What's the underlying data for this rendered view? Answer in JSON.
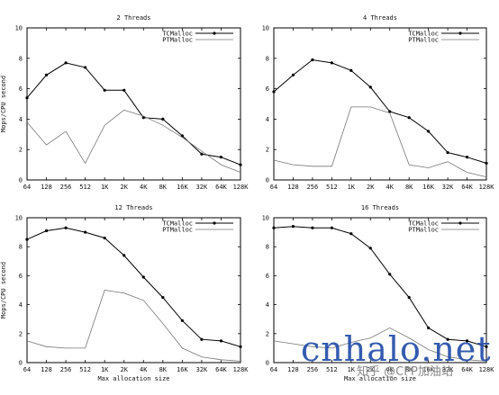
{
  "chart_data": [
    {
      "type": "line",
      "title": "2 Threads",
      "xlabel": "",
      "ylabel": "Mops/CPU second",
      "categories": [
        "64",
        "128",
        "256",
        "512",
        "1K",
        "2K",
        "4K",
        "8K",
        "16K",
        "32K",
        "64K",
        "128K"
      ],
      "ylim": [
        0,
        10
      ],
      "yticks": [
        0,
        2,
        4,
        6,
        8,
        10
      ],
      "legend": "top-right",
      "series": [
        {
          "name": "TCMalloc",
          "values": [
            5.4,
            6.9,
            7.7,
            7.4,
            5.9,
            5.9,
            4.1,
            4.0,
            2.9,
            1.7,
            1.5,
            1.0
          ]
        },
        {
          "name": "PTMalloc",
          "values": [
            3.8,
            2.3,
            3.2,
            1.1,
            3.6,
            4.6,
            4.2,
            3.6,
            2.8,
            1.9,
            1.0,
            0.5
          ]
        }
      ]
    },
    {
      "type": "line",
      "title": "4 Threads",
      "xlabel": "",
      "ylabel": "",
      "categories": [
        "64",
        "128",
        "256",
        "512",
        "1K",
        "2K",
        "4K",
        "8K",
        "16K",
        "32K",
        "64K",
        "128K"
      ],
      "ylim": [
        0,
        10
      ],
      "yticks": [
        0,
        2,
        4,
        6,
        8,
        10
      ],
      "legend": "top-right",
      "series": [
        {
          "name": "TCMalloc",
          "values": [
            5.8,
            6.9,
            7.9,
            7.7,
            7.2,
            6.1,
            4.5,
            4.1,
            3.2,
            1.8,
            1.5,
            1.1
          ]
        },
        {
          "name": "PTMalloc",
          "values": [
            1.3,
            1.0,
            0.9,
            0.9,
            4.8,
            4.8,
            4.4,
            1.0,
            0.8,
            1.2,
            0.5,
            0.2
          ]
        }
      ]
    },
    {
      "type": "line",
      "title": "12 Threads",
      "xlabel": "Max allocation size",
      "ylabel": "Mops/CPU second",
      "categories": [
        "64",
        "128",
        "256",
        "512",
        "1K",
        "2K",
        "4K",
        "8K",
        "16K",
        "32K",
        "64K",
        "128K"
      ],
      "ylim": [
        0,
        10
      ],
      "yticks": [
        0,
        2,
        4,
        6,
        8,
        10
      ],
      "legend": "top-right",
      "series": [
        {
          "name": "TCMalloc",
          "values": [
            8.5,
            9.1,
            9.3,
            9.0,
            8.6,
            7.4,
            5.9,
            4.5,
            2.9,
            1.6,
            1.5,
            1.1
          ]
        },
        {
          "name": "PTMalloc",
          "values": [
            1.5,
            1.1,
            1.0,
            1.0,
            5.0,
            4.8,
            4.3,
            2.7,
            1.0,
            0.4,
            0.2,
            0.1
          ]
        }
      ]
    },
    {
      "type": "line",
      "title": "16 Threads",
      "xlabel": "Max allocation size",
      "ylabel": "",
      "categories": [
        "64",
        "128",
        "256",
        "512",
        "1K",
        "2K",
        "4K",
        "8K",
        "16K",
        "32K",
        "64K",
        "128K"
      ],
      "ylim": [
        0,
        10
      ],
      "yticks": [
        0,
        2,
        4,
        6,
        8,
        10
      ],
      "legend": "top-right",
      "series": [
        {
          "name": "TCMalloc",
          "values": [
            9.3,
            9.4,
            9.3,
            9.3,
            8.9,
            7.9,
            6.1,
            4.5,
            2.4,
            1.6,
            1.5,
            1.1
          ]
        },
        {
          "name": "PTMalloc",
          "values": [
            1.5,
            1.3,
            1.1,
            1.0,
            1.4,
            1.7,
            2.4,
            1.7,
            0.9,
            0.4,
            0.2,
            0.1
          ]
        }
      ]
    }
  ],
  "watermark": {
    "text": "cnhalo.net",
    "text_color": "#1f4aa8",
    "sub": "知乎 @CPP加油站"
  },
  "colors": {
    "tcmalloc": "#000000",
    "ptmalloc": "#777777",
    "axis": "#000000"
  }
}
